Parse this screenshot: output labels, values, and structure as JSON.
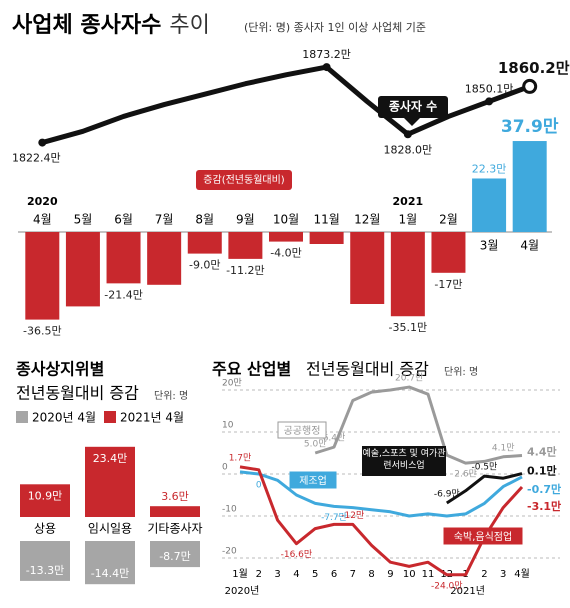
{
  "title_main": "사업체 종사자수",
  "title_sub": "추이",
  "note": "(단위: 명) 종사자 1인 이상 사업체 기준",
  "chart_data": [
    {
      "type": "combo",
      "categories": [
        "4월",
        "5월",
        "6월",
        "7월",
        "8월",
        "9월",
        "10월",
        "11월",
        "12월",
        "1월",
        "2월",
        "3월",
        "4월"
      ],
      "year_labels": [
        "2020",
        null,
        null,
        null,
        null,
        null,
        null,
        null,
        null,
        "2021",
        null,
        null,
        null
      ],
      "series": [
        {
          "name": "종사자 수",
          "type": "line",
          "color": "#111111",
          "values": [
            1822.4,
            1830,
            1840,
            1848,
            1855,
            1862,
            1868,
            1873.2,
            1850,
            1828.0,
            1840,
            1850.1,
            1860.2
          ],
          "value_labels": [
            "1822.4만",
            null,
            null,
            null,
            null,
            null,
            null,
            "1873.2만",
            null,
            "1828.0만",
            null,
            "1850.1만",
            "1860.2만"
          ],
          "ylim": [
            1810,
            1880
          ]
        },
        {
          "name": "증감(전년동월대비)",
          "type": "bar",
          "colors": {
            "positive": "#3fa9dd",
            "negative": "#c8282d"
          },
          "values": [
            -36.5,
            -31,
            -21.4,
            -22,
            -9.0,
            -11.2,
            -4.0,
            -5,
            -30,
            -35.1,
            -17,
            22.3,
            37.9
          ],
          "value_labels": [
            "-36.5만",
            null,
            "-21.4만",
            null,
            "-9.0만",
            "-11.2만",
            "-4.0만",
            null,
            null,
            "-35.1만",
            "-17만",
            "22.3만",
            "37.9만"
          ],
          "ylim": [
            -40,
            40
          ]
        }
      ]
    },
    {
      "type": "bar",
      "title": "종사상지위별",
      "subtitle": "전년동월대비 증감",
      "unit": "단위: 명",
      "categories": [
        "상용",
        "임시일용",
        "기타종사자"
      ],
      "series": [
        {
          "name": "2020년 4월",
          "color": "#a6a6a6",
          "values": [
            -13.3,
            -14.4,
            -8.7
          ],
          "value_labels": [
            "-13.3만",
            "-14.4만",
            "-8.7만"
          ]
        },
        {
          "name": "2021년 4월",
          "color": "#c8282d",
          "values": [
            10.9,
            23.4,
            3.6
          ],
          "value_labels": [
            "10.9만",
            "23.4만",
            "3.6만"
          ]
        }
      ],
      "ylim": [
        -16,
        26
      ]
    },
    {
      "type": "line",
      "title": "주요 산업별",
      "subtitle": "전년동월대비 증감",
      "unit": "단위: 명",
      "categories": [
        "1월",
        "2",
        "3",
        "4",
        "5",
        "6",
        "7",
        "8",
        "9",
        "10",
        "11",
        "12",
        "1",
        "2",
        "3",
        "4월"
      ],
      "year_labels": [
        "2020년",
        null,
        null,
        null,
        null,
        null,
        null,
        null,
        null,
        null,
        null,
        null,
        "2021년",
        null,
        null,
        null
      ],
      "ylim": [
        -25,
        22
      ],
      "yticks": [
        {
          "value": 20,
          "label": "20만"
        },
        10,
        0,
        -10,
        -20
      ],
      "grid": true,
      "series": [
        {
          "name": "공공행정",
          "color": "#9a9a9a",
          "values": [
            null,
            null,
            null,
            null,
            5.0,
            6.4,
            17.5,
            19.5,
            20.0,
            20.7,
            19,
            4.5,
            2.6,
            3,
            4.1,
            4.4
          ],
          "value_labels": [
            null,
            null,
            null,
            null,
            "5.0만",
            "6.4만",
            null,
            null,
            null,
            "20.7만",
            null,
            null,
            "2.6만",
            null,
            "4.1만",
            "4.4만"
          ]
        },
        {
          "name": "제조업",
          "color": "#3fa9dd",
          "values": [
            0.5,
            0,
            -1.5,
            -5,
            -7,
            -7.7,
            -8,
            -8.5,
            -9,
            -10,
            -9.5,
            -10,
            -9.5,
            -7,
            -3,
            -0.7
          ],
          "value_labels": [
            null,
            "0",
            null,
            null,
            null,
            "-7.7만",
            null,
            null,
            null,
            null,
            null,
            null,
            null,
            null,
            null,
            "-0.7만"
          ]
        },
        {
          "name": "예술,스포츠 및 여가관련서비스업",
          "color": "#111111",
          "values": [
            null,
            null,
            null,
            null,
            null,
            null,
            null,
            null,
            null,
            null,
            null,
            -6.9,
            -4,
            -0.5,
            -1,
            0.1
          ],
          "value_labels": [
            null,
            null,
            null,
            null,
            null,
            null,
            null,
            null,
            null,
            null,
            null,
            "-6.9만",
            null,
            "-0.5만",
            null,
            "0.1만"
          ]
        },
        {
          "name": "숙박,음식점업",
          "color": "#c8282d",
          "values": [
            1.7,
            1,
            -11,
            -16.6,
            -13,
            -12,
            -12,
            -17,
            -21,
            -22,
            -21,
            -24.0,
            -24,
            -15,
            -8,
            -3.1
          ],
          "value_labels": [
            "1.7만",
            null,
            null,
            "-16.6만",
            null,
            null,
            "-12만",
            null,
            null,
            null,
            null,
            "-24.0만",
            null,
            null,
            null,
            "-3.1만"
          ]
        }
      ]
    }
  ]
}
